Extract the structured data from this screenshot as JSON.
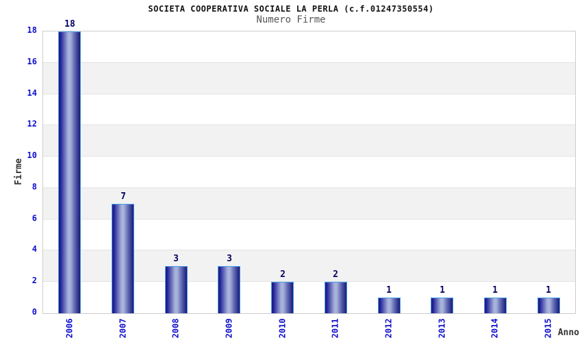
{
  "chart_data": {
    "type": "bar",
    "title": "SOCIETA COOPERATIVA SOCIALE LA PERLA (c.f.01247350554)",
    "subtitle": "Numero Firme",
    "xlabel": "Anno",
    "ylabel": "Firme",
    "categories": [
      "2006",
      "2007",
      "2008",
      "2009",
      "2010",
      "2011",
      "2012",
      "2013",
      "2014",
      "2015"
    ],
    "values": [
      18,
      7,
      3,
      3,
      2,
      2,
      1,
      1,
      1,
      1
    ],
    "ylim": [
      0,
      18
    ],
    "ytick_step": 2,
    "grid": "horizontal gridlines every 2 units with alternating white and gray bands",
    "legend_position": "none",
    "value_labels_shown": true,
    "colors": {
      "bar_dark": "#1a1a75",
      "bar_edge_inner": "#23249a",
      "bar_mid": "#5a63b0",
      "bar_light": "#a8b2da",
      "bar_border": "#4b9fe8",
      "tick_label": "#0f0fcc",
      "value_label": "#000060",
      "title": "#111111",
      "subtitle": "#555555",
      "axis_label": "#333333",
      "band_gray": "#f2f2f2",
      "gridline": "#e2e2e2",
      "plot_border": "#cccccc",
      "background": "#ffffff"
    }
  }
}
